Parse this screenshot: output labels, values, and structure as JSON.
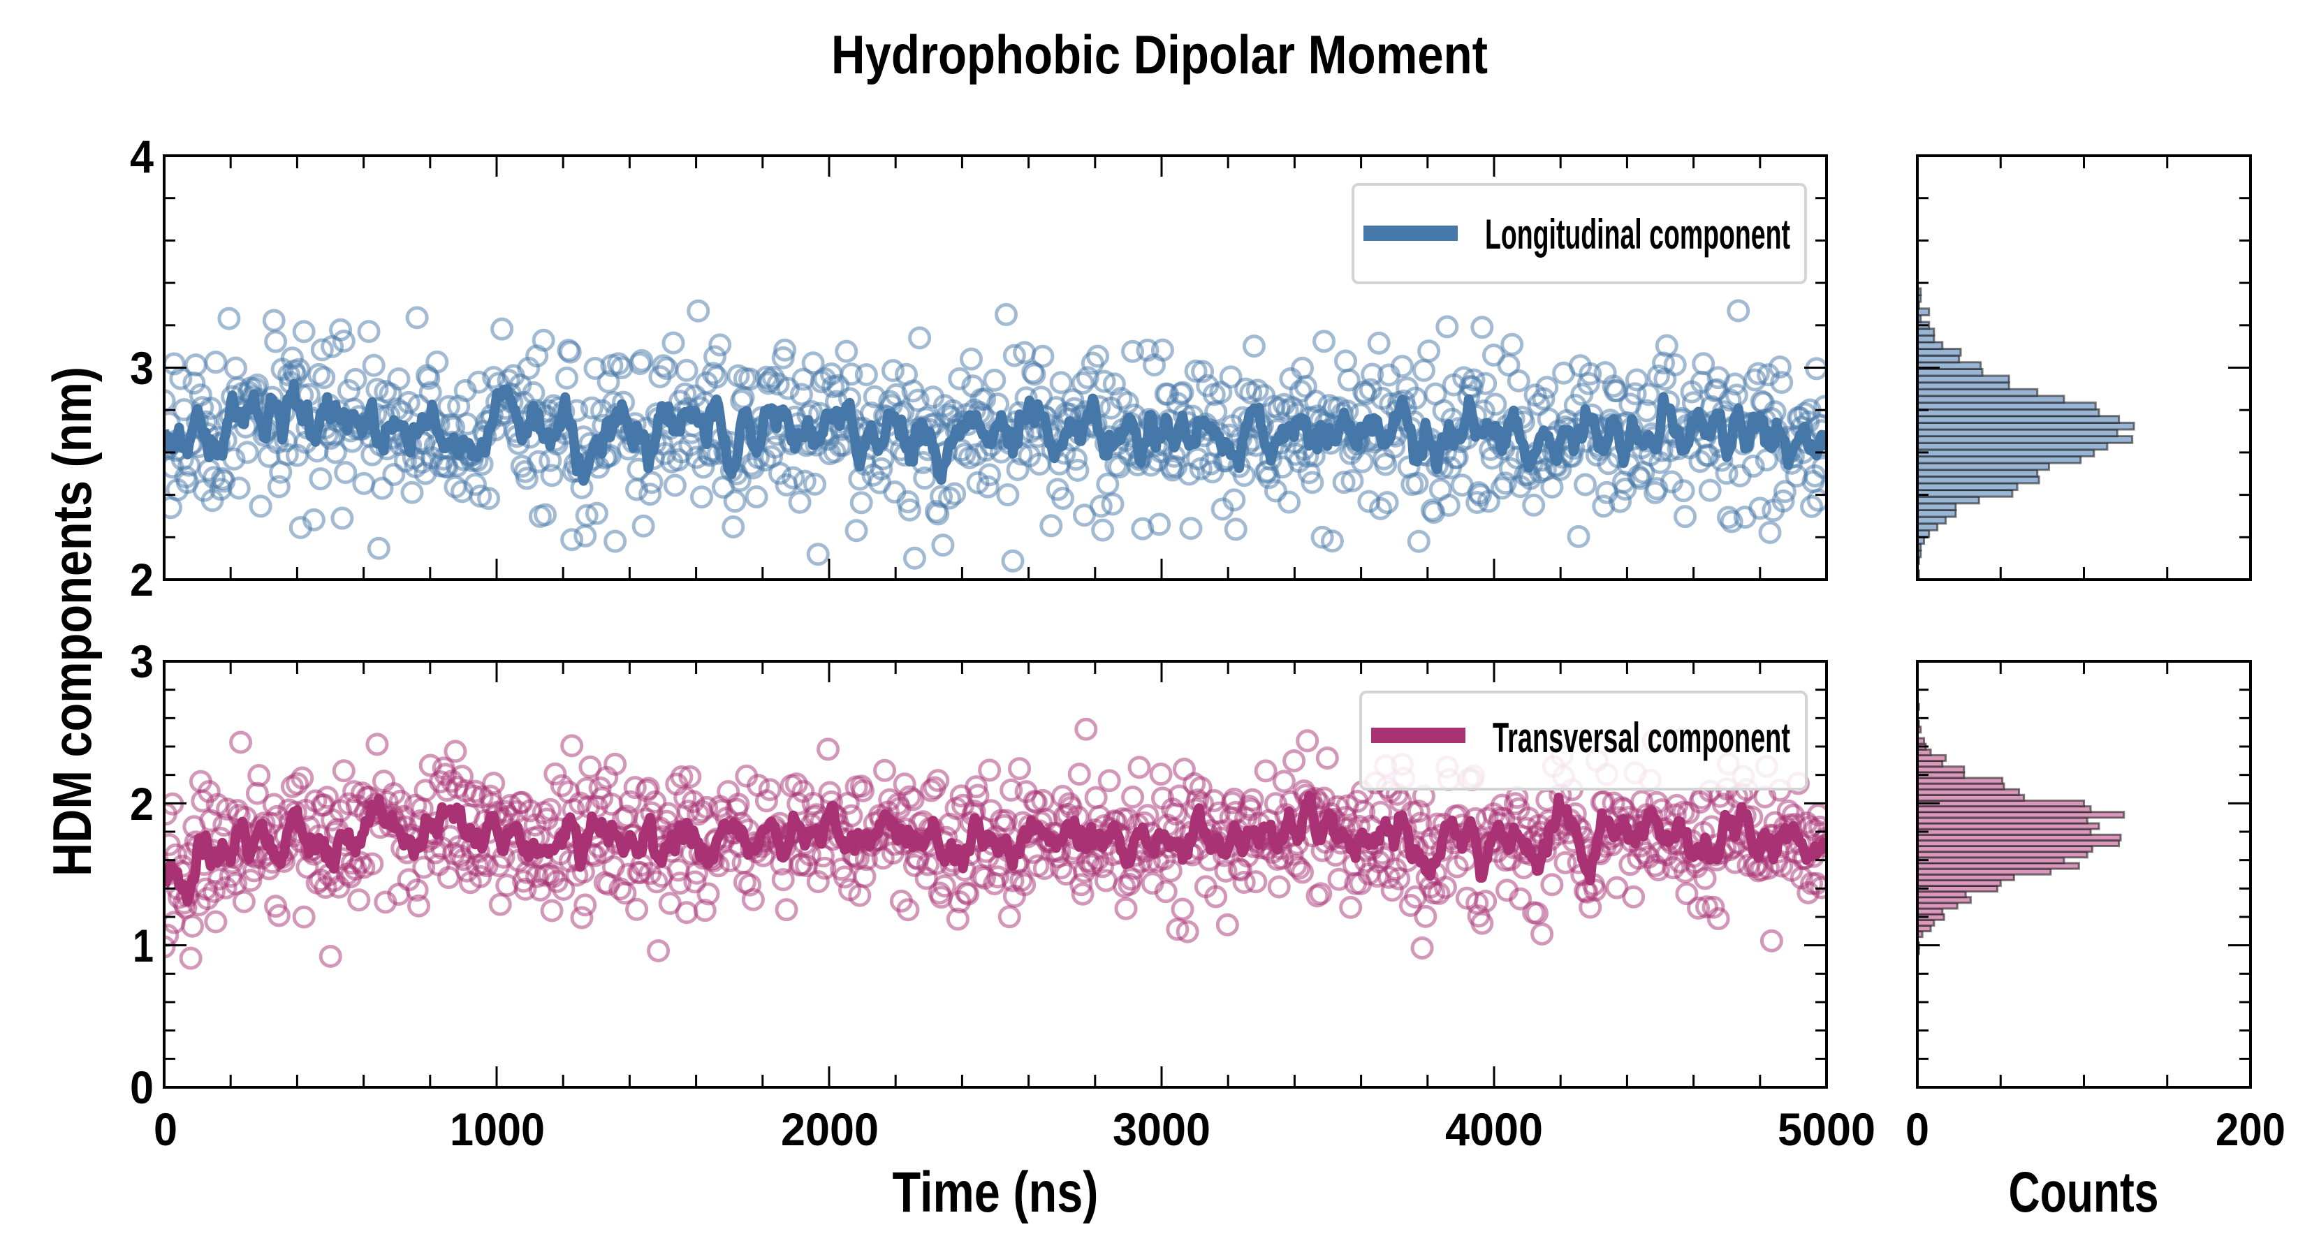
{
  "chart_data": [
    {
      "type": "scatter",
      "panel": "longitudinal-timeseries",
      "title": "Hydrophobic Dipolar Moment",
      "xlabel": "Time (ns)",
      "ylabel": "HDM components (nm)",
      "xlim": [
        0,
        5000
      ],
      "ylim": [
        2,
        4
      ],
      "xticks": [
        "0",
        "1000",
        "2000",
        "3000",
        "4000",
        "5000"
      ],
      "yticks": [
        "2",
        "3",
        "4"
      ],
      "legend": {
        "label": "Longitudinal component",
        "placement": "top-right"
      },
      "color": "#4577a8",
      "series_scatter": {
        "n": 1000,
        "mean": 2.7,
        "std": 0.2,
        "seed": 17
      },
      "series_line": {
        "name": "running average",
        "window": 7
      }
    },
    {
      "type": "scatter",
      "panel": "transversal-timeseries",
      "xlim": [
        0,
        5000
      ],
      "ylim": [
        0,
        3
      ],
      "yticks": [
        "0",
        "1",
        "2",
        "3"
      ],
      "legend": {
        "label": "Transversal component",
        "placement": "top-right"
      },
      "color": "#a83273",
      "series_scatter": {
        "n": 1000,
        "mean": 1.75,
        "std": 0.26,
        "seed": 91,
        "initial_offset": -0.35,
        "initial_decay_ns": 150
      },
      "series_line": {
        "name": "running average",
        "window": 7
      }
    },
    {
      "type": "bar",
      "orientation": "horizontal",
      "panel": "longitudinal-histogram",
      "xlabel": "Counts",
      "xlim": [
        0,
        200
      ],
      "ylim": [
        2,
        4
      ],
      "bin_start": 2.011,
      "bin_width": 0.0317,
      "counts": [
        1,
        0,
        1,
        2,
        2,
        4,
        7,
        12,
        17,
        23,
        23,
        37,
        57,
        60,
        73,
        72,
        79,
        98,
        106,
        114,
        129,
        120,
        130,
        121,
        109,
        107,
        88,
        72,
        55,
        55,
        39,
        38,
        25,
        26,
        15,
        10,
        10,
        7,
        2,
        7,
        1,
        2,
        2
      ],
      "fill": "#9ab6d6"
    },
    {
      "type": "bar",
      "orientation": "horizontal",
      "panel": "transversal-histogram",
      "xlabel": "Counts",
      "xlim": [
        0,
        200
      ],
      "xticks": [
        "0",
        "200"
      ],
      "ylim": [
        0,
        3
      ],
      "bin_start": 0.939,
      "bin_width": 0.04,
      "counts": [
        1,
        1,
        0,
        3,
        8,
        10,
        16,
        15,
        24,
        32,
        29,
        48,
        50,
        58,
        80,
        97,
        88,
        102,
        105,
        121,
        122,
        104,
        109,
        102,
        124,
        104,
        100,
        64,
        61,
        52,
        51,
        28,
        28,
        15,
        17,
        8,
        5,
        4,
        0,
        2,
        1,
        0,
        0,
        1
      ],
      "fill": "#dc97bd"
    }
  ]
}
